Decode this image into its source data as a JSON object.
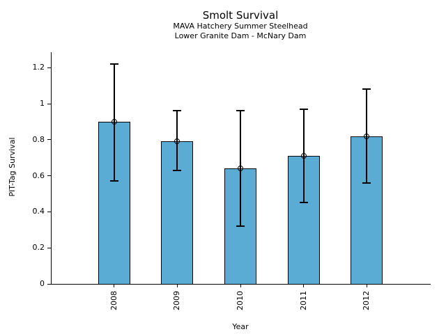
{
  "figure": {
    "title": "Smolt Survival",
    "subtitle1": "MAVA Hatchery Summer Steelhead",
    "subtitle2": "Lower Granite Dam - McNary Dam"
  },
  "chart_data": {
    "type": "bar",
    "title": "Smolt Survival",
    "subtitle": [
      "MAVA Hatchery Summer Steelhead",
      "Lower Granite Dam - McNary Dam"
    ],
    "xlabel": "Year",
    "ylabel": "PIT-Tag Survival",
    "categories": [
      "2008",
      "2009",
      "2010",
      "2011",
      "2012"
    ],
    "values": [
      0.9,
      0.79,
      0.64,
      0.71,
      0.82
    ],
    "error_low": [
      0.57,
      0.63,
      0.32,
      0.45,
      0.56
    ],
    "error_high": [
      1.22,
      0.96,
      0.96,
      0.97,
      1.08
    ],
    "yticks": [
      0,
      0.2,
      0.4,
      0.6,
      0.8,
      1,
      1.2
    ],
    "ytick_labels": [
      "0",
      "0.2",
      "0.4",
      "0.6",
      "0.8",
      "1",
      "1.2"
    ],
    "ylim": [
      0,
      1.29
    ],
    "grid": false,
    "legend": "none",
    "marker": "open-circle",
    "bar_color": "#5BACD5",
    "bar_edge_color": "#000000",
    "error_color": "#000000"
  }
}
